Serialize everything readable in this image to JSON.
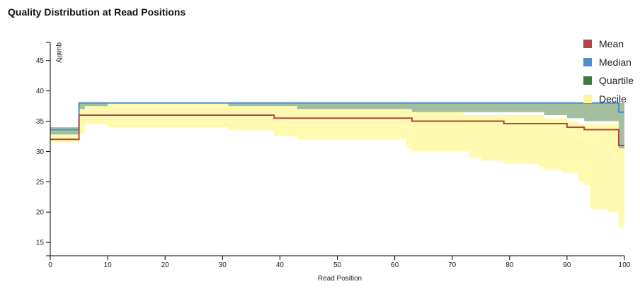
{
  "chart_data": {
    "type": "area",
    "title": "Quality Distribution at Read Positions",
    "xlabel": "Read Position",
    "ylabel": "quality",
    "xlim": [
      0,
      100
    ],
    "ylim": [
      12.8,
      48
    ],
    "xticks": [
      "0",
      "10",
      "20",
      "30",
      "40",
      "50",
      "60",
      "70",
      "80",
      "90",
      "100"
    ],
    "yticks": [
      "15",
      "20",
      "25",
      "30",
      "35",
      "40",
      "45"
    ],
    "grid": false,
    "legend_position": "top-right",
    "legend": [
      {
        "name": "Mean",
        "color": "#b04545"
      },
      {
        "name": "Median",
        "color": "#4a8fcc"
      },
      {
        "name": "Quartile",
        "color": "#3f7a3f"
      },
      {
        "name": "Decile",
        "color": "#fff59a"
      }
    ],
    "x": [
      0,
      4,
      5,
      6,
      10,
      30,
      31,
      38,
      39,
      40,
      43,
      45,
      62,
      63,
      65,
      72,
      73,
      75,
      76,
      78,
      79,
      85,
      86,
      89,
      90,
      92,
      93,
      94,
      95,
      97,
      98,
      99,
      100
    ],
    "series": [
      {
        "name": "Mean",
        "values": [
          32,
          32,
          36,
          36,
          36,
          36,
          36,
          36,
          35.5,
          35.5,
          35.5,
          35.5,
          35.5,
          35,
          35,
          35,
          35,
          35,
          35,
          35,
          34.6,
          34.6,
          34.6,
          34.6,
          34,
          34,
          33.6,
          33.6,
          33.6,
          33.6,
          33.6,
          31,
          31
        ]
      },
      {
        "name": "Median",
        "values": [
          33.6,
          33.6,
          38,
          38,
          38,
          38,
          38,
          38,
          38,
          38,
          38,
          38,
          38,
          38,
          38,
          38,
          38,
          38,
          38,
          38,
          38,
          38,
          38,
          38,
          38,
          38,
          38,
          38,
          38,
          38,
          38,
          36.5,
          36.5
        ]
      },
      {
        "name": "Quartile lower",
        "values": [
          32.8,
          32.8,
          37,
          37.5,
          38,
          38,
          37.5,
          37.5,
          37.5,
          37.5,
          37,
          37,
          37,
          36.5,
          36.5,
          36.5,
          36.5,
          36.5,
          36.5,
          36.5,
          36.5,
          36.5,
          36,
          36,
          35.5,
          35.5,
          35,
          35,
          35,
          35,
          35,
          30.5,
          30.5
        ]
      },
      {
        "name": "Quartile upper",
        "values": [
          34,
          34,
          38,
          38,
          38,
          38,
          38,
          38,
          38,
          38,
          38,
          38,
          38,
          38,
          38,
          38,
          38,
          38,
          38,
          38,
          38,
          38,
          38,
          38,
          38,
          38,
          38,
          38,
          38,
          38,
          38,
          38,
          38
        ]
      },
      {
        "name": "Decile lower",
        "values": [
          31.5,
          31.5,
          33,
          34.5,
          34,
          34,
          33.5,
          33.5,
          32.5,
          32.5,
          32,
          32,
          30.5,
          30,
          30,
          30,
          29,
          28.5,
          28.5,
          28.5,
          28,
          27.5,
          27,
          26.5,
          26.5,
          25,
          24.5,
          20.5,
          20.5,
          20,
          20,
          17.5,
          17.5
        ]
      },
      {
        "name": "Decile upper",
        "values": [
          33,
          33,
          37,
          38,
          38,
          38,
          37.5,
          37.5,
          37.5,
          37.5,
          37,
          37,
          37,
          36.5,
          36.5,
          36,
          36,
          36,
          36,
          36,
          36,
          36,
          35.5,
          35.5,
          35,
          34.5,
          34.5,
          34.5,
          34.5,
          34.5,
          34.5,
          30.5,
          30.5
        ]
      }
    ]
  }
}
